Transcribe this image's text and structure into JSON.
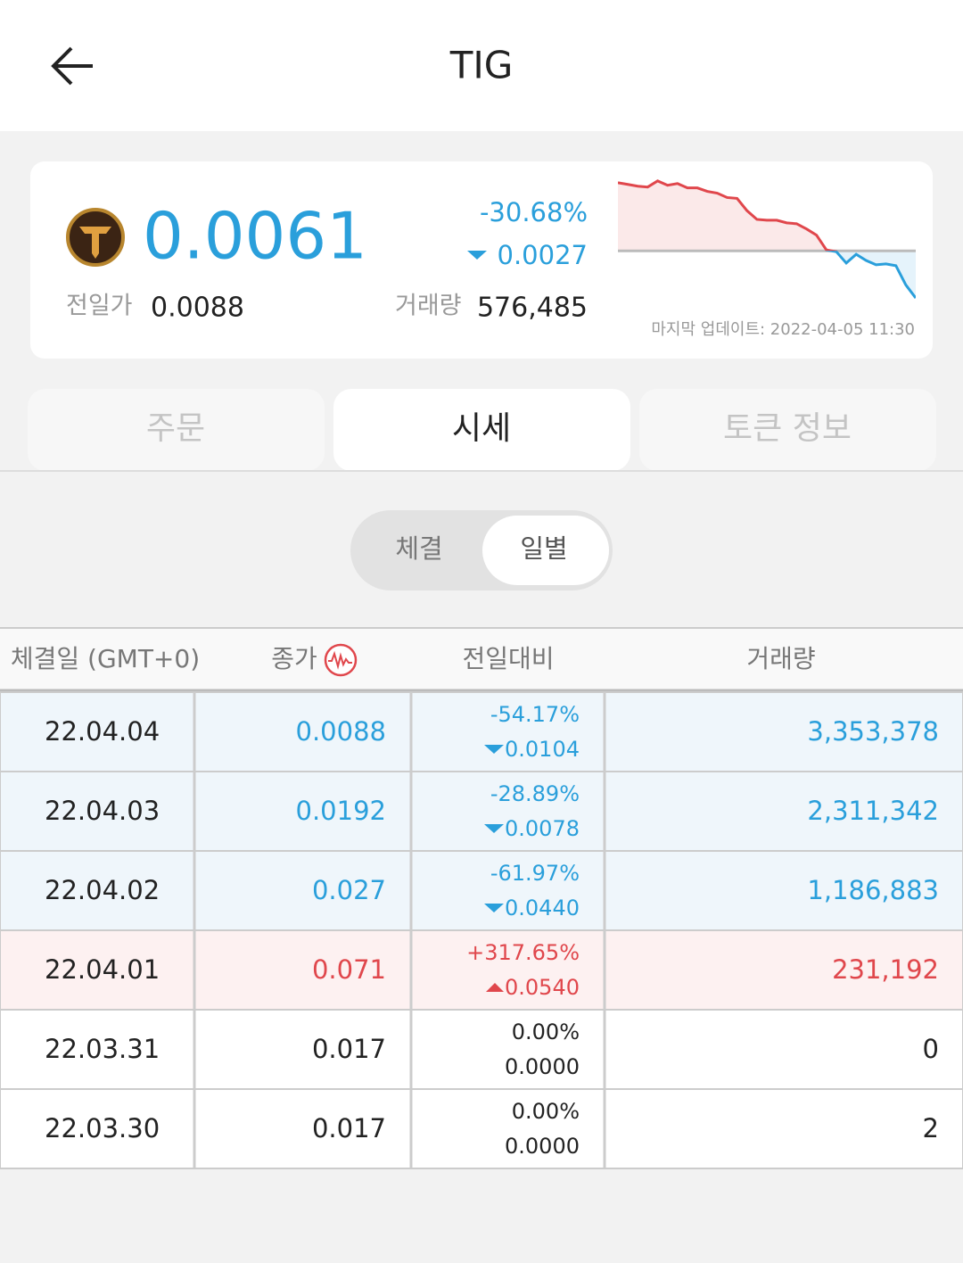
{
  "header": {
    "title": "TIG"
  },
  "summary": {
    "price": "0.0061",
    "change_pct": "-30.68%",
    "change": "0.0027",
    "prev_close_label": "전일가",
    "prev_close": "0.0088",
    "volume_label": "거래량",
    "volume": "576,485",
    "updated": "마지막 업데이트: 2022-04-05 11:30"
  },
  "chart_data": {
    "type": "line",
    "values": [
      0.0127,
      0.0126,
      0.0125,
      0.01245,
      0.0128,
      0.01255,
      0.01265,
      0.0124,
      0.0124,
      0.0122,
      0.0121,
      0.01185,
      0.0118,
      0.0111,
      0.0106,
      0.01055,
      0.01055,
      0.0104,
      0.01035,
      0.01005,
      0.0097,
      0.00885,
      0.00875,
      0.0081,
      0.0086,
      0.00825,
      0.008,
      0.00805,
      0.00795,
      0.00685,
      0.0061
    ],
    "ylim": [
      0.0058,
      0.0132
    ],
    "baseline": 0.0088,
    "up_color": "#e0474c",
    "down_color": "#2a9fdb"
  },
  "tabs": [
    "주문",
    "시세",
    "토큰 정보"
  ],
  "active_tab": 1,
  "toggle": [
    "체결",
    "일별"
  ],
  "active_toggle": 1,
  "table": {
    "columns": [
      "체결일 (GMT+0)",
      "종가",
      "전일대비",
      "거래량"
    ],
    "rows": [
      {
        "date": "22.04.04",
        "close": "0.0088",
        "change_pct": "-54.17%",
        "change": "0.0104",
        "volume": "3,353,378",
        "trend": "down"
      },
      {
        "date": "22.04.03",
        "close": "0.0192",
        "change_pct": "-28.89%",
        "change": "0.0078",
        "volume": "2,311,342",
        "trend": "down"
      },
      {
        "date": "22.04.02",
        "close": "0.027",
        "change_pct": "-61.97%",
        "change": "0.0440",
        "volume": "1,186,883",
        "trend": "down"
      },
      {
        "date": "22.04.01",
        "close": "0.071",
        "change_pct": "+317.65%",
        "change": "0.0540",
        "volume": "231,192",
        "trend": "up"
      },
      {
        "date": "22.03.31",
        "close": "0.017",
        "change_pct": "0.00%",
        "change": "0.0000",
        "volume": "0",
        "trend": "flat"
      },
      {
        "date": "22.03.30",
        "close": "0.017",
        "change_pct": "0.00%",
        "change": "0.0000",
        "volume": "2",
        "trend": "flat"
      }
    ]
  }
}
